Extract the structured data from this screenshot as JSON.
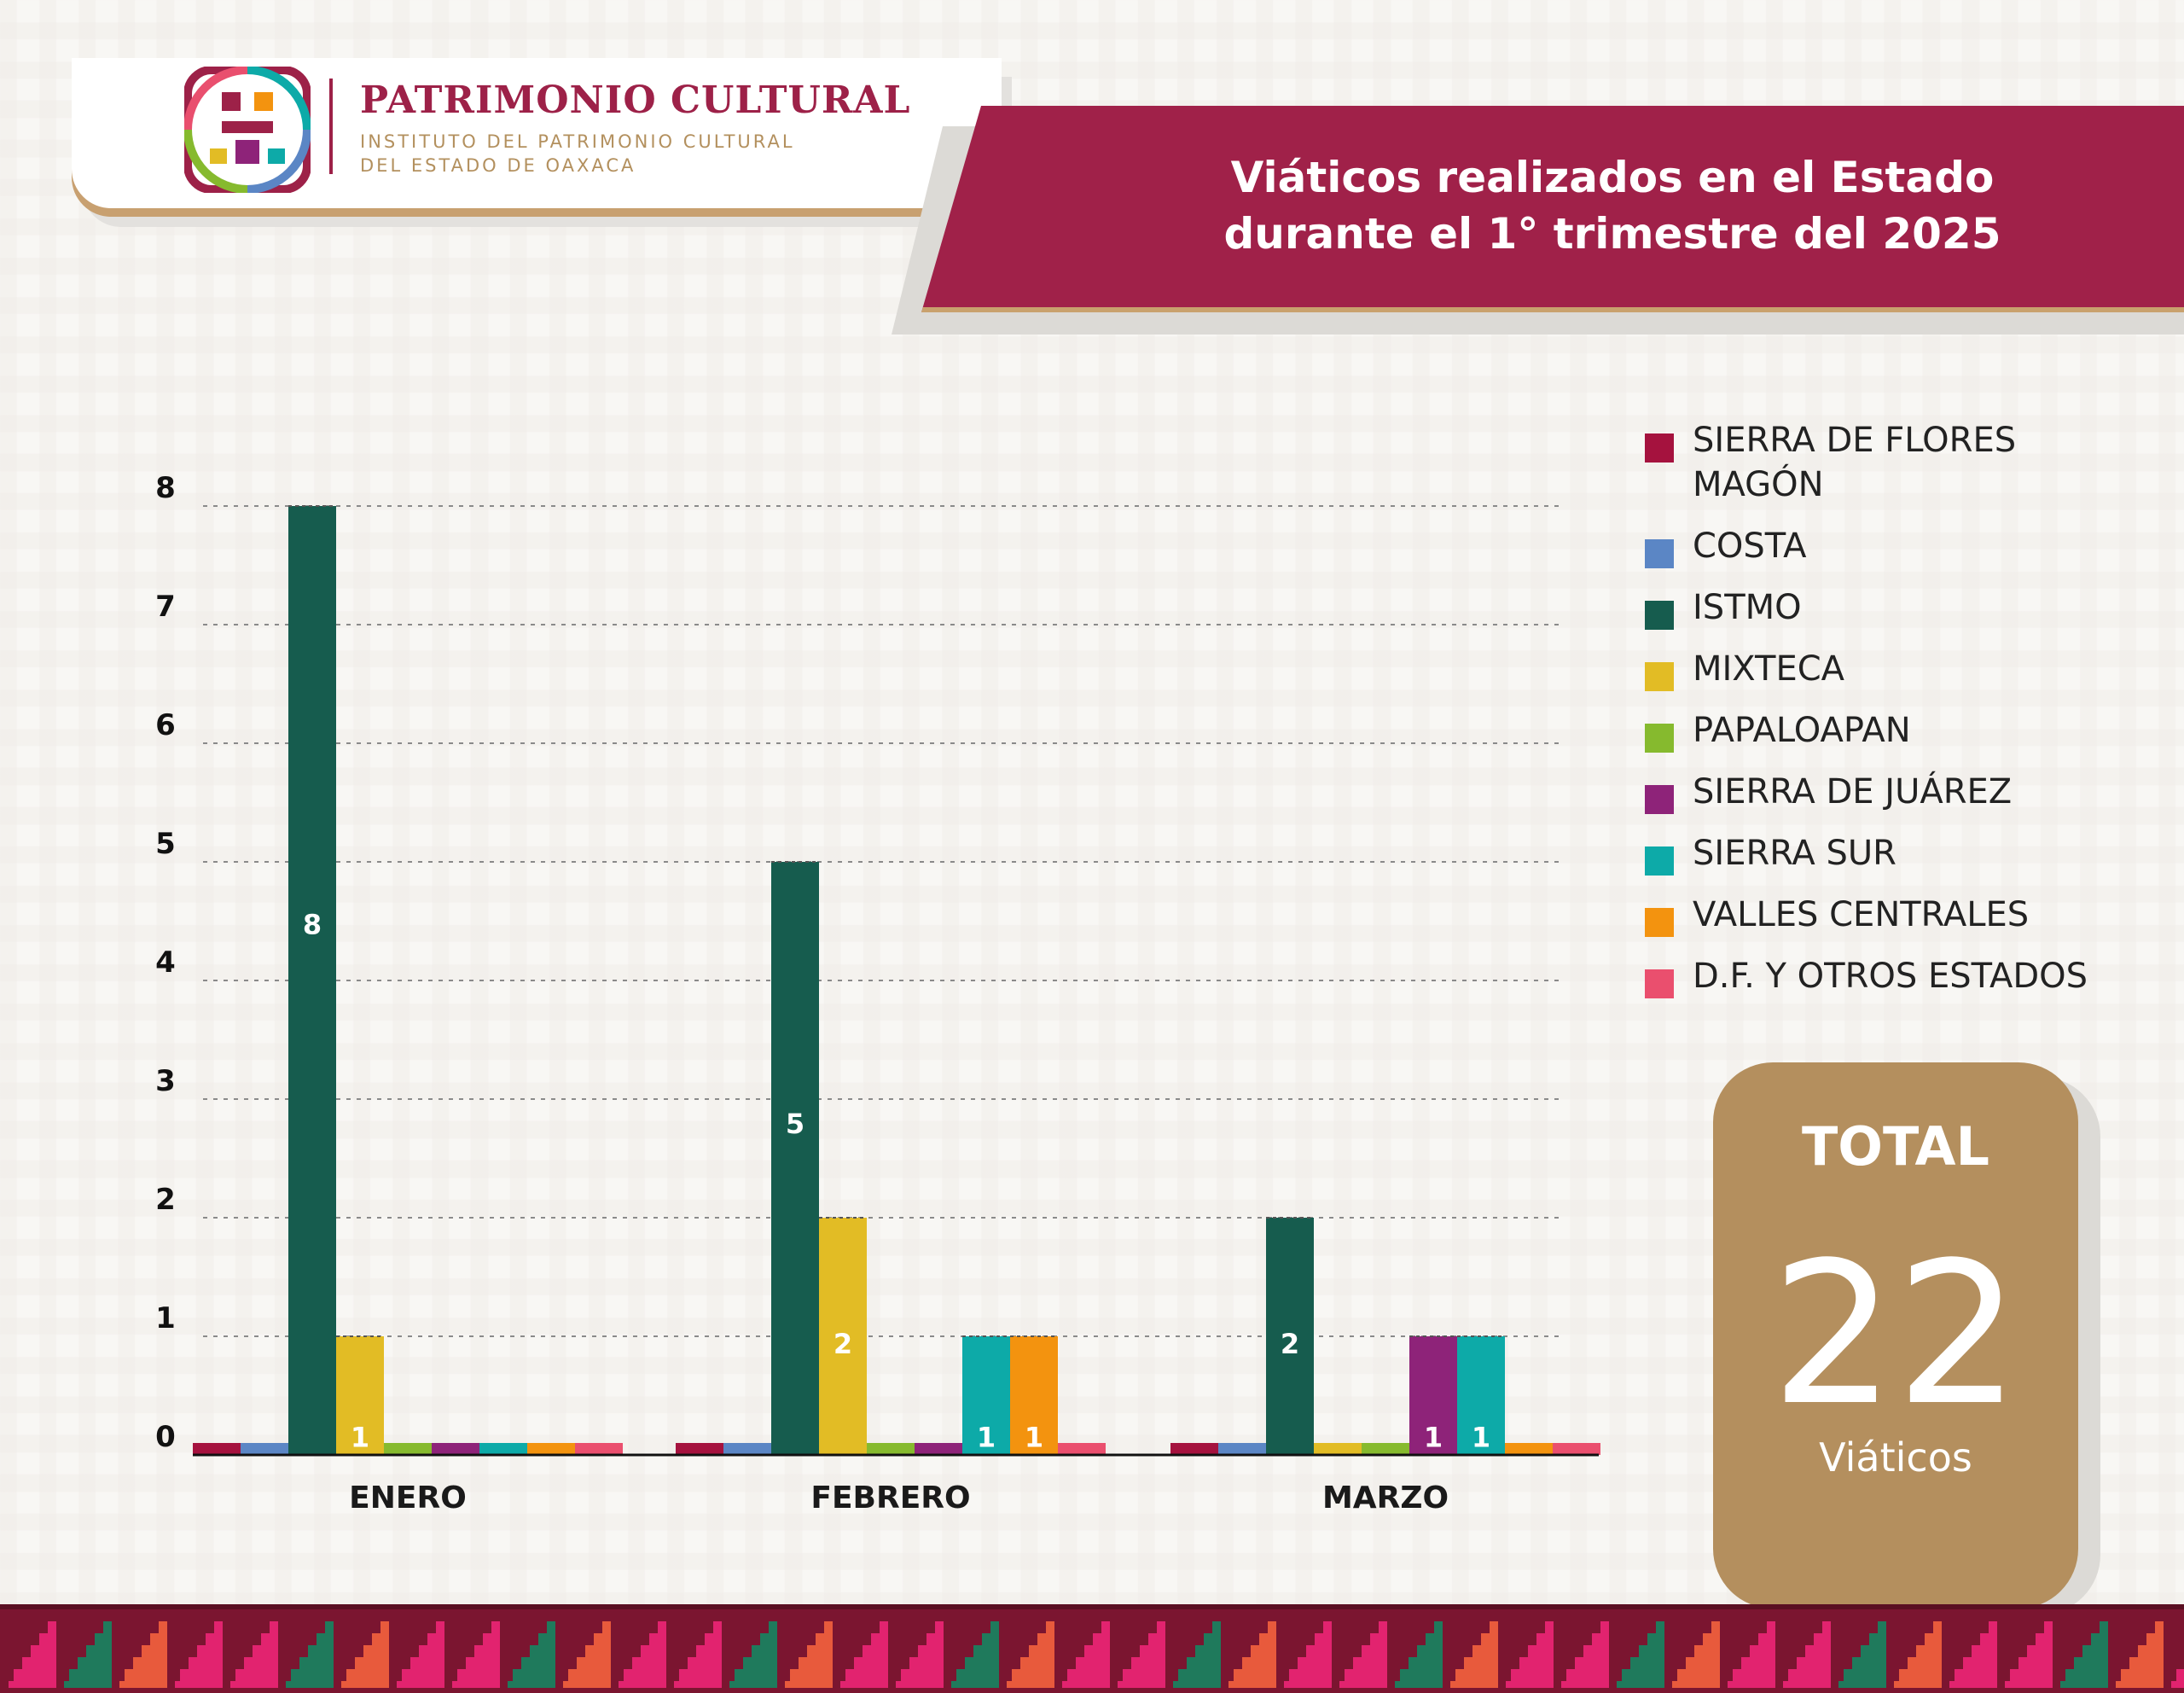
{
  "logo": {
    "title": "PATRIMONIO CULTURAL",
    "subtitle_line1": "INSTITUTO DEL PATRIMONIO CULTURAL",
    "subtitle_line2": "DEL ESTADO DE OAXACA"
  },
  "header": {
    "title_line1": "Viáticos realizados en el Estado",
    "title_line2": "durante el 1° trimestre del 2025"
  },
  "total": {
    "label": "TOTAL",
    "value": "22",
    "unit": "Viáticos"
  },
  "colors": {
    "brand_maroon": "#a02149",
    "gold": "#b48f5e"
  },
  "chart_data": {
    "type": "bar",
    "title": "Viáticos realizados en el Estado durante el 1° trimestre del 2025",
    "xlabel": "",
    "ylabel": "",
    "ylim": [
      0,
      8
    ],
    "yticks": [
      0,
      1,
      2,
      3,
      4,
      5,
      6,
      7,
      8
    ],
    "grid": true,
    "legend_position": "right",
    "categories": [
      "ENERO",
      "FEBRERO",
      "MARZO"
    ],
    "series": [
      {
        "name": "SIERRA DE FLORES MAGÓN",
        "color": "#a5123e",
        "values": [
          0,
          0,
          0
        ]
      },
      {
        "name": "COSTA",
        "color": "#5b86c5",
        "values": [
          0,
          0,
          0
        ]
      },
      {
        "name": "ISTMO",
        "color": "#165c4e",
        "values": [
          8,
          5,
          2
        ]
      },
      {
        "name": "MIXTECA",
        "color": "#e2bc25",
        "values": [
          1,
          2,
          0
        ]
      },
      {
        "name": "PAPALOAPAN",
        "color": "#86ba2e",
        "values": [
          0,
          0,
          0
        ]
      },
      {
        "name": "SIERRA DE JUÁREZ",
        "color": "#8e2379",
        "values": [
          0,
          0,
          1
        ]
      },
      {
        "name": "SIERRA SUR",
        "color": "#0daaa8",
        "values": [
          0,
          1,
          1
        ]
      },
      {
        "name": "VALLES CENTRALES",
        "color": "#f3930f",
        "values": [
          0,
          1,
          0
        ]
      },
      {
        "name": "D.F. Y OTROS ESTADOS",
        "color": "#ea4f6e",
        "values": [
          0,
          0,
          0
        ]
      }
    ]
  }
}
